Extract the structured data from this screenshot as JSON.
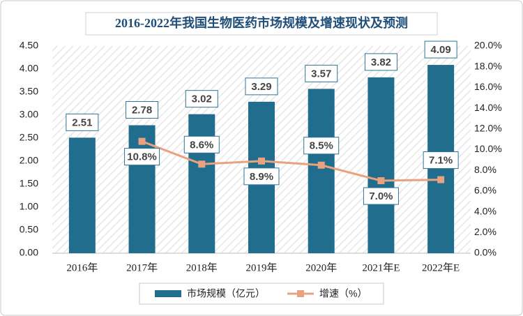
{
  "chart_data": {
    "type": "bar-line",
    "title": "2016-2022年我国生物医药市场规模及增速现状及预测",
    "categories": [
      "2016年",
      "2017年",
      "2018年",
      "2019年",
      "2020年",
      "2021年E",
      "2022年E"
    ],
    "series": [
      {
        "name": "市场规模（亿元）",
        "type": "bar",
        "color": "#216d8d",
        "values": [
          2.51,
          2.78,
          3.02,
          3.29,
          3.57,
          3.82,
          4.09
        ]
      },
      {
        "name": "增速（%）",
        "type": "line",
        "axis": "y2",
        "color": "#e9a27f",
        "values": [
          null,
          10.8,
          8.6,
          8.9,
          8.5,
          7.0,
          7.1
        ],
        "value_labels": [
          null,
          "10.8%",
          "8.6%",
          "8.9%",
          "8.5%",
          "7.0%",
          "7.1%"
        ]
      }
    ],
    "ylim": [
      0,
      4.5
    ],
    "yticks": [
      {
        "value": 0,
        "label": "0.00"
      },
      {
        "value": 0.5,
        "label": "0.50"
      },
      {
        "value": 1,
        "label": "1.00"
      },
      {
        "value": 1.5,
        "label": "1.50"
      },
      {
        "value": 2,
        "label": "2.00"
      },
      {
        "value": 2.5,
        "label": "2.50"
      },
      {
        "value": 3,
        "label": "3.00"
      },
      {
        "value": 3.5,
        "label": "3.50"
      },
      {
        "value": 4,
        "label": "4.00"
      },
      {
        "value": 4.5,
        "label": "4.50"
      }
    ],
    "y2lim": [
      0,
      20
    ],
    "y2ticks": [
      {
        "value": 0,
        "label": "0.0%"
      },
      {
        "value": 2,
        "label": "2.0%"
      },
      {
        "value": 4,
        "label": "4.0%"
      },
      {
        "value": 6,
        "label": "6.0%"
      },
      {
        "value": 8,
        "label": "8.0%"
      },
      {
        "value": 10,
        "label": "10.0%"
      },
      {
        "value": 12,
        "label": "12.0%"
      },
      {
        "value": 14,
        "label": "14.0%"
      },
      {
        "value": 16,
        "label": "16.0%"
      },
      {
        "value": 18,
        "label": "18.0%"
      },
      {
        "value": 20,
        "label": "20.0%"
      }
    ],
    "legend": "bottom"
  }
}
